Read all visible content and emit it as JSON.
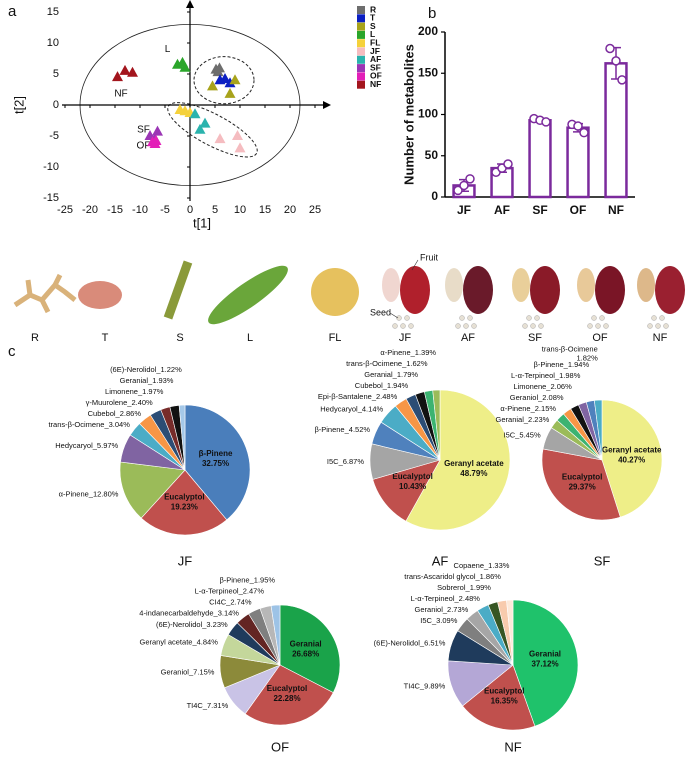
{
  "panel_labels": [
    "a",
    "b",
    "c"
  ],
  "photos": {
    "labels": [
      "R",
      "T",
      "S",
      "L",
      "FL",
      "JF",
      "AF",
      "SF",
      "OF",
      "NF"
    ],
    "fruit_label": "Fruit",
    "seed_label": "Seed"
  },
  "chart_data": [
    {
      "type": "scatter",
      "xlabel": "t[1]",
      "ylabel": "t[2]",
      "xlim": [
        -25,
        25
      ],
      "xticks": [
        -25,
        -20,
        -15,
        -10,
        -5,
        0,
        5,
        10,
        15,
        20,
        25
      ],
      "ylim": [
        -15,
        15
      ],
      "yticks": [
        -15,
        -10,
        -5,
        0,
        5,
        10,
        15
      ],
      "annotations": [
        "NF",
        "L",
        "SF",
        "OF"
      ],
      "series": [
        {
          "name": "R",
          "color": "#6d6d6d",
          "x": [
            5.2,
            5.6,
            5.9
          ],
          "values": [
            5.7,
            5.3,
            5.9
          ]
        },
        {
          "name": "T",
          "color": "#0b1fc2",
          "x": [
            6,
            7,
            8
          ],
          "values": [
            4,
            4.2,
            3.5
          ]
        },
        {
          "name": "S",
          "color": "#a8a31b",
          "x": [
            4.5,
            9,
            8
          ],
          "values": [
            3,
            4,
            1.8
          ]
        },
        {
          "name": "L",
          "color": "#2aa52a",
          "x": [
            -2.5,
            -1.5,
            -1
          ],
          "values": [
            6.5,
            6.8,
            6
          ]
        },
        {
          "name": "FL",
          "color": "#f5d13a",
          "x": [
            -2,
            -1,
            0
          ],
          "values": [
            -0.8,
            -1,
            -1.3
          ]
        },
        {
          "name": "JF",
          "color": "#f5bcc0",
          "x": [
            6,
            9.5,
            10
          ],
          "values": [
            -5.5,
            -5,
            -7
          ]
        },
        {
          "name": "AF",
          "color": "#2ab3ad",
          "x": [
            1,
            2,
            3
          ],
          "values": [
            -1.5,
            -4,
            -3
          ]
        },
        {
          "name": "SF",
          "color": "#9b35b5",
          "x": [
            -8,
            -7,
            -6.5
          ],
          "values": [
            -5,
            -5.5,
            -4.3
          ]
        },
        {
          "name": "OF",
          "color": "#e31fb8",
          "x": [
            -7.5,
            -7,
            -6.8
          ],
          "values": [
            -6,
            -6.3,
            -5.8
          ]
        },
        {
          "name": "NF",
          "color": "#a3151d",
          "x": [
            -14.5,
            -13,
            -11.5
          ],
          "values": [
            4.5,
            5.5,
            5.2
          ]
        }
      ]
    },
    {
      "type": "bar",
      "ylabel": "Number of metabolites",
      "color": "#7b2a9c",
      "categories": [
        "JF",
        "AF",
        "SF",
        "OF",
        "NF"
      ],
      "values": [
        14,
        35,
        93,
        84,
        162
      ],
      "errors": [
        7,
        5,
        2,
        5,
        19
      ],
      "points": [
        [
          8,
          14,
          22
        ],
        [
          30,
          35,
          40
        ],
        [
          95,
          93,
          91
        ],
        [
          88,
          86,
          78
        ],
        [
          180,
          165,
          142
        ]
      ],
      "ylim": [
        0,
        200
      ],
      "yticks": [
        0,
        50,
        100,
        150,
        200
      ]
    },
    {
      "type": "pie",
      "title": "JF",
      "labels": [
        "β-Pinene\n32.75%",
        "Eucalyptol\n19.23%",
        "α-Pinene_12.80%",
        "Hedycaryol_5.97%",
        "trans-β-Ocimene_3.04%",
        "Cubebol_2.86%",
        "γ-Muurolene_2.40%",
        "Limonene_1.97%",
        "Geranial_1.93%",
        "(6E)-Nerolidol_1.22%"
      ],
      "values": [
        32.75,
        19.23,
        12.8,
        5.97,
        3.04,
        2.86,
        2.4,
        1.97,
        1.93,
        1.22
      ],
      "colors": [
        "#4a7ebb",
        "#c0504d",
        "#9bbb59",
        "#8064a2",
        "#4bacc6",
        "#f79646",
        "#2c4d75",
        "#772c2a",
        "#111111",
        "#a5c8e8"
      ]
    },
    {
      "type": "pie",
      "title": "AF",
      "labels": [
        "Geranyl acetate\n48.79%",
        "Eucalyptol\n10.43%",
        "I5C_6.87%",
        "β-Pinene_4.52%",
        "Hedycaryol_4.14%",
        "Epi-β-Santalene_2.48%",
        "Cubebol_1.94%",
        "Geranial_1.79%",
        "trans-β-Ocimene_1.62%",
        "α-Pinene_1.39%"
      ],
      "values": [
        48.79,
        10.43,
        6.87,
        4.52,
        4.14,
        2.48,
        1.94,
        1.79,
        1.62,
        1.39
      ],
      "colors": [
        "#eeee88",
        "#c0504d",
        "#a5a5a5",
        "#4f81bd",
        "#4bacc6",
        "#f79646",
        "#2c4d75",
        "#111111",
        "#3cb371",
        "#9bbb59"
      ]
    },
    {
      "type": "pie",
      "title": "SF",
      "labels": [
        "Geranyl acetate\n40.27%",
        "Eucalyptol\n29.37%",
        "I5C_5.45%",
        "Geranial_2.23%",
        "α-Pinene_2.15%",
        "Geraniol_2.08%",
        "Limonene_2.06%",
        "L-α-Terpineol_1.98%",
        "β-Pinene_1.94%",
        "trans-β-Ocimene\n1.82%"
      ],
      "values": [
        40.27,
        29.37,
        5.45,
        2.23,
        2.15,
        2.08,
        2.06,
        1.98,
        1.94,
        1.82
      ],
      "colors": [
        "#eeee88",
        "#c0504d",
        "#a5a5a5",
        "#9bbb59",
        "#3cb371",
        "#f79646",
        "#111111",
        "#8064a2",
        "#4f81bd",
        "#4bacc6"
      ]
    },
    {
      "type": "pie",
      "title": "OF",
      "labels": [
        "Geranial\n26.68%",
        "Eucalyptol\n22.28%",
        "TI4C_7.31%",
        "Geraniol_7.15%",
        "Geranyl acetate_4.84%",
        "(6E)-Nerolidol_3.23%",
        "4-indanecarbaldehyde_3.14%",
        "CI4C_2.74%",
        "L-α-Terpineol_2.47%",
        "β-Pinene_1.95%"
      ],
      "values": [
        26.68,
        22.28,
        7.31,
        7.15,
        4.84,
        3.23,
        3.14,
        2.74,
        2.47,
        1.95
      ],
      "colors": [
        "#1aa34a",
        "#c0504d",
        "#c9c3e6",
        "#8c8a3a",
        "#c4d79b",
        "#1f3b5c",
        "#632523",
        "#7f7f7f",
        "#b7b7b7",
        "#9dc3e6"
      ]
    },
    {
      "type": "pie",
      "title": "NF",
      "labels": [
        "Geranial\n37.12%",
        "Eucalyptol\n16.35%",
        "TI4C_9.89%",
        "(6E)-Nerolidol_6.51%",
        "I5C_3.09%",
        "Geraniol_2.73%",
        "L-α-Terpineol_2.48%",
        "Sobrerol_1.99%",
        "trans-Ascaridol glycol_1.86%",
        "Copaene_1.33%"
      ],
      "values": [
        37.12,
        16.35,
        9.89,
        6.51,
        3.09,
        2.73,
        2.48,
        1.99,
        1.86,
        1.33
      ],
      "colors": [
        "#1fc26b",
        "#c0504d",
        "#b4a7d6",
        "#1f3b5c",
        "#7f7f7f",
        "#a6a6a6",
        "#4bacc6",
        "#375623",
        "#f8cbad",
        "#fde9d9"
      ]
    }
  ]
}
